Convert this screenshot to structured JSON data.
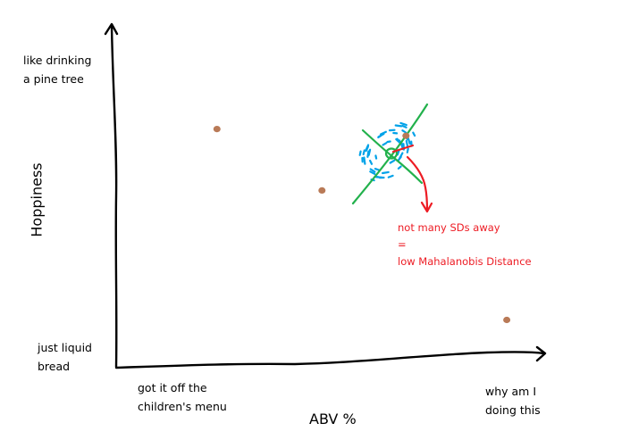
{
  "chart_data": {
    "type": "scatter",
    "xlabel": "ABV %",
    "ylabel": "Hoppiness",
    "x_axis_labels": {
      "low": [
        "got it off the",
        "children's menu"
      ],
      "high": [
        "why am I",
        "doing this"
      ]
    },
    "y_axis_labels": {
      "high": [
        "like drinking",
        "a pine tree"
      ],
      "low": [
        "just liquid",
        "bread"
      ]
    },
    "points": [
      {
        "x": 0.24,
        "y": 0.7
      },
      {
        "x": 0.49,
        "y": 0.52
      },
      {
        "x": 0.69,
        "y": 0.68
      },
      {
        "x": 0.93,
        "y": 0.14
      }
    ],
    "annotation": {
      "lines": [
        "not many SDs away",
        "=",
        "low Mahalanobis Distance"
      ]
    },
    "colors": {
      "axes": "#000000",
      "points": "#b97a57",
      "distribution_dots": "#00a2e8",
      "principal_axes": "#22b14c",
      "annotation": "#ed1c24"
    }
  }
}
